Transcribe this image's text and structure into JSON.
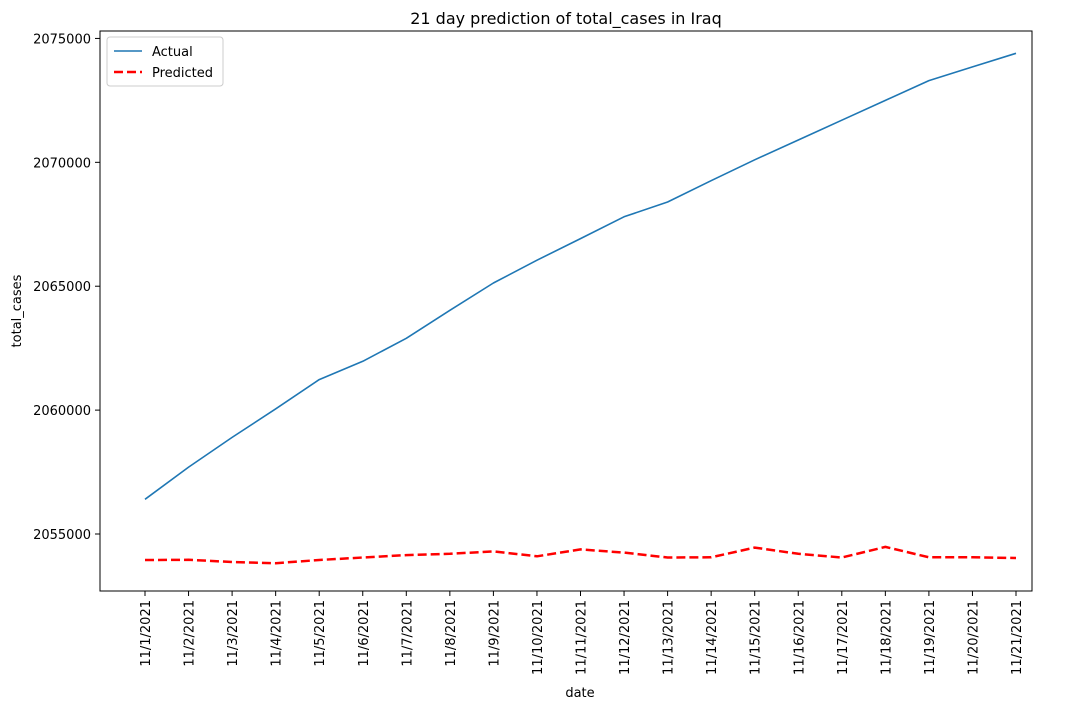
{
  "chart_data": {
    "type": "line",
    "title": "21 day prediction of total_cases in Iraq",
    "xlabel": "date",
    "ylabel": "total_cases",
    "x": [
      "11/1/2021",
      "11/2/2021",
      "11/3/2021",
      "11/4/2021",
      "11/5/2021",
      "11/6/2021",
      "11/7/2021",
      "11/8/2021",
      "11/9/2021",
      "11/10/2021",
      "11/11/2021",
      "11/12/2021",
      "11/13/2021",
      "11/14/2021",
      "11/15/2021",
      "11/16/2021",
      "11/17/2021",
      "11/18/2021",
      "11/19/2021",
      "11/20/2021",
      "11/21/2021"
    ],
    "yticks": [
      2055000,
      2060000,
      2065000,
      2070000,
      2075000
    ],
    "ylim": [
      2052700,
      2075300
    ],
    "grid": false,
    "legend_position": "top-left",
    "series": [
      {
        "name": "Actual",
        "color": "#1f77b4",
        "style": "solid",
        "values": [
          2056400,
          2057700,
          2058900,
          2060050,
          2061230,
          2061970,
          2062900,
          2064030,
          2065130,
          2066050,
          2066920,
          2067800,
          2068400,
          2069260,
          2070100,
          2070900,
          2071700,
          2072500,
          2073300,
          2073850,
          2074400
        ]
      },
      {
        "name": "Predicted",
        "color": "#ff0000",
        "style": "dashed",
        "values": [
          2053950,
          2053960,
          2053870,
          2053820,
          2053950,
          2054050,
          2054150,
          2054200,
          2054300,
          2054100,
          2054380,
          2054250,
          2054050,
          2054060,
          2054450,
          2054200,
          2054050,
          2054480,
          2054060,
          2054060,
          2054030
        ]
      }
    ]
  }
}
